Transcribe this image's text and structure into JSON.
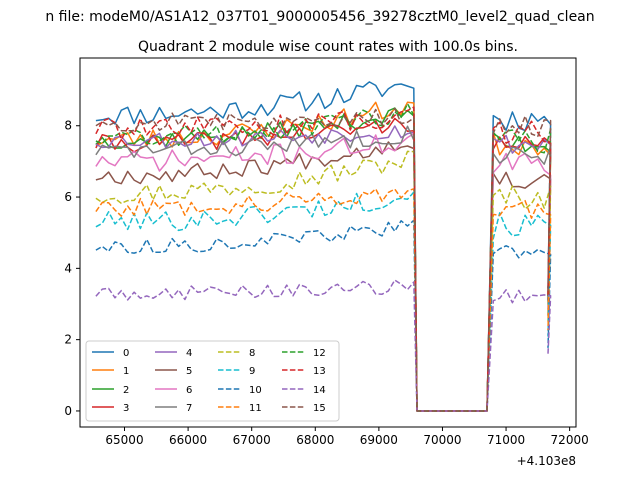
{
  "figure": {
    "suptitle": "n file: modeM0/AS1A12_037T01_9000005456_39278cztM0_level2_quad_clean",
    "title": "Quadrant 2 module wise count rates with 100.0s bins."
  },
  "chart_data": {
    "type": "line",
    "title": "Quadrant 2 module wise count rates with 100.0s bins.",
    "xlabel": "",
    "ylabel": "",
    "x_offset_label": "+4.103e8",
    "xlim": [
      64300,
      72100
    ],
    "ylim": [
      -0.45,
      9.9
    ],
    "xticks": [
      65000,
      66000,
      67000,
      68000,
      69000,
      70000,
      71000,
      72000
    ],
    "xtick_labels": [
      "65000",
      "66000",
      "67000",
      "68000",
      "69000",
      "70000",
      "71000",
      "72000"
    ],
    "yticks": [
      0,
      2,
      4,
      6,
      8
    ],
    "ytick_labels": [
      "0",
      "2",
      "4",
      "6",
      "8"
    ],
    "grid": false,
    "legend": {
      "placement": "lower-left",
      "columns": 4
    },
    "x_segments": [
      {
        "start": 64550,
        "end": 69600,
        "step": 100
      },
      {
        "start": 70700,
        "end": 71650,
        "step": 100
      }
    ],
    "series": [
      {
        "name": "0",
        "color": "#1f77b4",
        "dash": "solid",
        "level": 8.3,
        "amp": 0.3,
        "trend": 0.9,
        "seed": 11
      },
      {
        "name": "1",
        "color": "#ff7f0e",
        "dash": "solid",
        "level": 7.6,
        "amp": 0.3,
        "trend": 1.0,
        "seed": 23
      },
      {
        "name": "2",
        "color": "#2ca02c",
        "dash": "solid",
        "level": 7.6,
        "amp": 0.25,
        "trend": 0.8,
        "seed": 37
      },
      {
        "name": "3",
        "color": "#d62728",
        "dash": "solid",
        "level": 7.5,
        "amp": 0.25,
        "trend": 0.6,
        "seed": 41
      },
      {
        "name": "4",
        "color": "#9467bd",
        "dash": "solid",
        "level": 7.6,
        "amp": 0.25,
        "trend": 0.3,
        "seed": 53
      },
      {
        "name": "5",
        "color": "#8c564b",
        "dash": "solid",
        "level": 6.6,
        "amp": 0.25,
        "trend": 1.0,
        "seed": 67
      },
      {
        "name": "6",
        "color": "#e377c2",
        "dash": "solid",
        "level": 7.0,
        "amp": 0.3,
        "trend": 0.6,
        "seed": 71
      },
      {
        "name": "7",
        "color": "#7f7f7f",
        "dash": "solid",
        "level": 7.3,
        "amp": 0.25,
        "trend": 0.5,
        "seed": 83
      },
      {
        "name": "8",
        "color": "#bcbd22",
        "dash": "dashed",
        "level": 6.1,
        "amp": 0.3,
        "trend": 1.0,
        "seed": 97
      },
      {
        "name": "9",
        "color": "#17becf",
        "dash": "dashed",
        "level": 5.3,
        "amp": 0.3,
        "trend": 0.8,
        "seed": 101
      },
      {
        "name": "10",
        "color": "#1f77b4",
        "dash": "dashed",
        "level": 4.6,
        "amp": 0.2,
        "trend": 0.6,
        "seed": 113
      },
      {
        "name": "11",
        "color": "#ff7f0e",
        "dash": "dashed",
        "level": 5.7,
        "amp": 0.25,
        "trend": 0.5,
        "seed": 127
      },
      {
        "name": "12",
        "color": "#2ca02c",
        "dash": "dashed",
        "level": 7.7,
        "amp": 0.3,
        "trend": 0.7,
        "seed": 131
      },
      {
        "name": "13",
        "color": "#d62728",
        "dash": "dashed",
        "level": 7.9,
        "amp": 0.3,
        "trend": 0.4,
        "seed": 139
      },
      {
        "name": "14",
        "color": "#9467bd",
        "dash": "dashed",
        "level": 3.3,
        "amp": 0.2,
        "trend": 0.2,
        "seed": 149
      },
      {
        "name": "15",
        "color": "#8c564b",
        "dash": "dashed",
        "level": 8.1,
        "amp": 0.25,
        "trend": 0.2,
        "seed": 157
      }
    ]
  }
}
